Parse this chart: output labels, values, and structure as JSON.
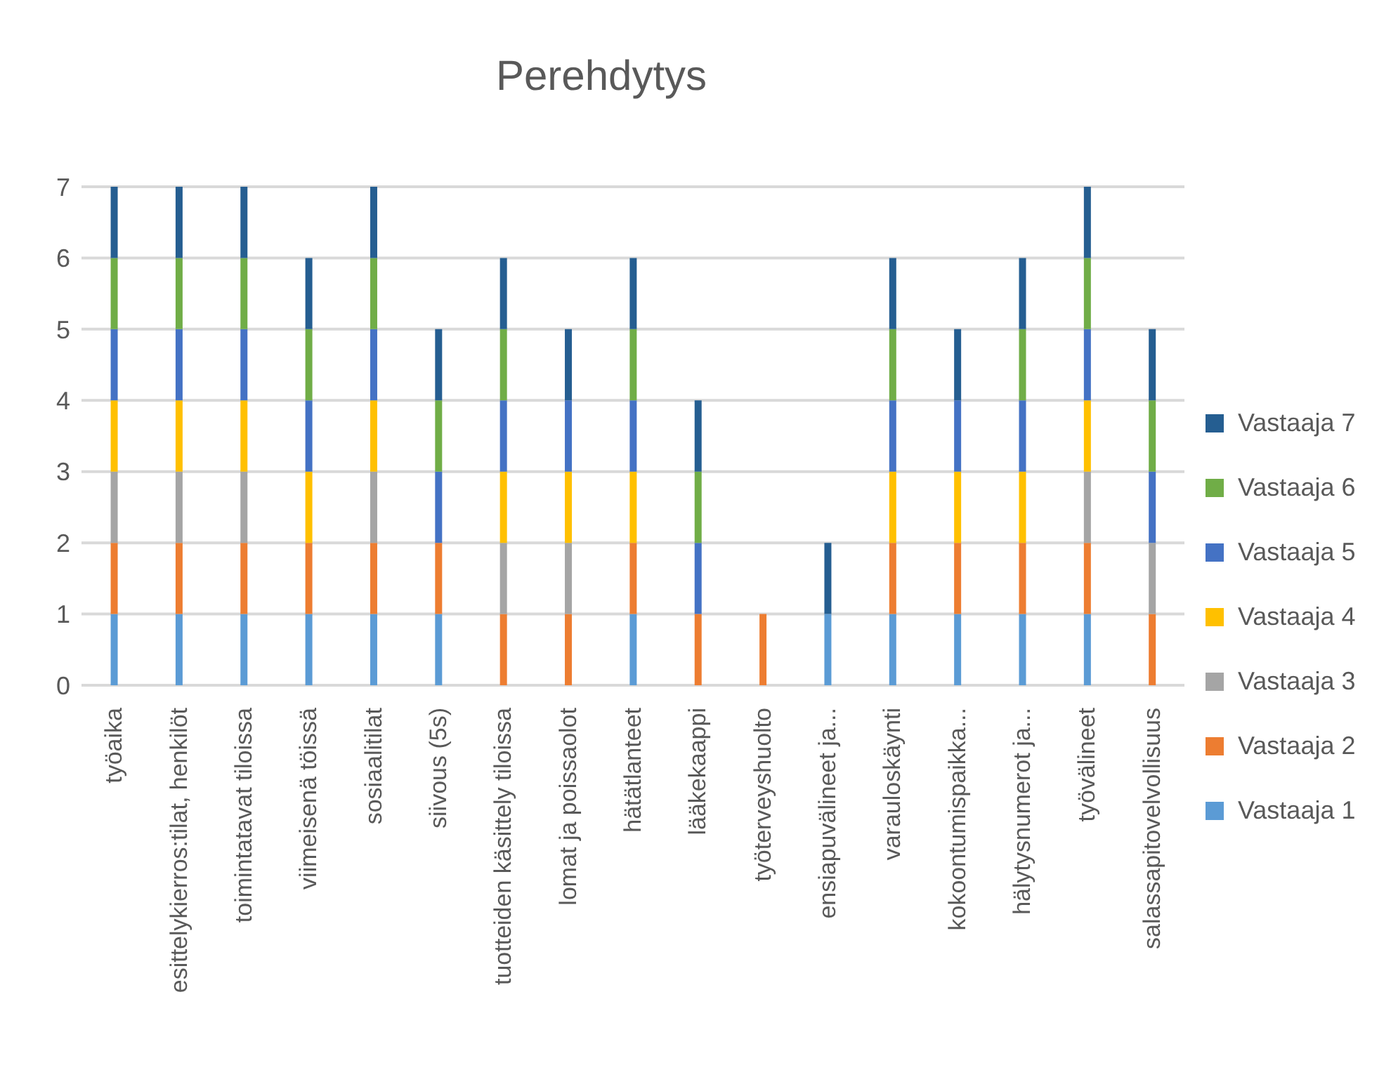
{
  "chart_data": {
    "type": "bar",
    "title": "Perehdytys",
    "stacked": true,
    "grid": "y",
    "legend": "right",
    "categories": [
      "työaika",
      "esittelykierros:tilat, henkilöt",
      "toimintatavat tiloissa",
      "viimeisenä töissä",
      "sosiaalitilat",
      "siivous (5s)",
      "tuotteiden käsittely tiloissa",
      "lomat ja poissaolot",
      "hätätlanteet",
      "lääkekaappi",
      "työterveyshuolto",
      "ensiapuvälineet ja...",
      "varauloskäynti",
      "kokoontumispaikka...",
      "hälytysnumerot ja...",
      "työvälineet",
      "salassapitovelvollisuus"
    ],
    "ylim": [
      0,
      7
    ],
    "yticks": [
      0,
      1,
      2,
      3,
      4,
      5,
      6,
      7
    ],
    "series": [
      {
        "name": "Vastaaja 1",
        "color": "#5b9bd5",
        "values": [
          1,
          1,
          1,
          1,
          1,
          1,
          0,
          0,
          1,
          0,
          0,
          1,
          1,
          1,
          1,
          1,
          0
        ]
      },
      {
        "name": "Vastaaja 2",
        "color": "#ed7d31",
        "values": [
          1,
          1,
          1,
          1,
          1,
          1,
          1,
          1,
          1,
          1,
          1,
          0,
          1,
          1,
          1,
          1,
          1
        ]
      },
      {
        "name": "Vastaaja 3",
        "color": "#a5a5a5",
        "values": [
          1,
          1,
          1,
          0,
          1,
          0,
          1,
          1,
          0,
          0,
          0,
          0,
          0,
          0,
          0,
          1,
          1
        ]
      },
      {
        "name": "Vastaaja 4",
        "color": "#ffc000",
        "values": [
          1,
          1,
          1,
          1,
          1,
          0,
          1,
          1,
          1,
          0,
          0,
          0,
          1,
          1,
          1,
          1,
          0
        ]
      },
      {
        "name": "Vastaaja 5",
        "color": "#4472c4",
        "values": [
          1,
          1,
          1,
          1,
          1,
          1,
          1,
          1,
          1,
          1,
          0,
          0,
          1,
          1,
          1,
          1,
          1
        ]
      },
      {
        "name": "Vastaaja 6",
        "color": "#70ad47",
        "values": [
          1,
          1,
          1,
          1,
          1,
          1,
          1,
          0,
          1,
          1,
          0,
          0,
          1,
          0,
          1,
          1,
          1
        ]
      },
      {
        "name": "Vastaaja 7",
        "color": "#255e91",
        "values": [
          1,
          1,
          1,
          1,
          1,
          1,
          1,
          1,
          1,
          1,
          0,
          1,
          1,
          1,
          1,
          1,
          1
        ]
      }
    ]
  }
}
